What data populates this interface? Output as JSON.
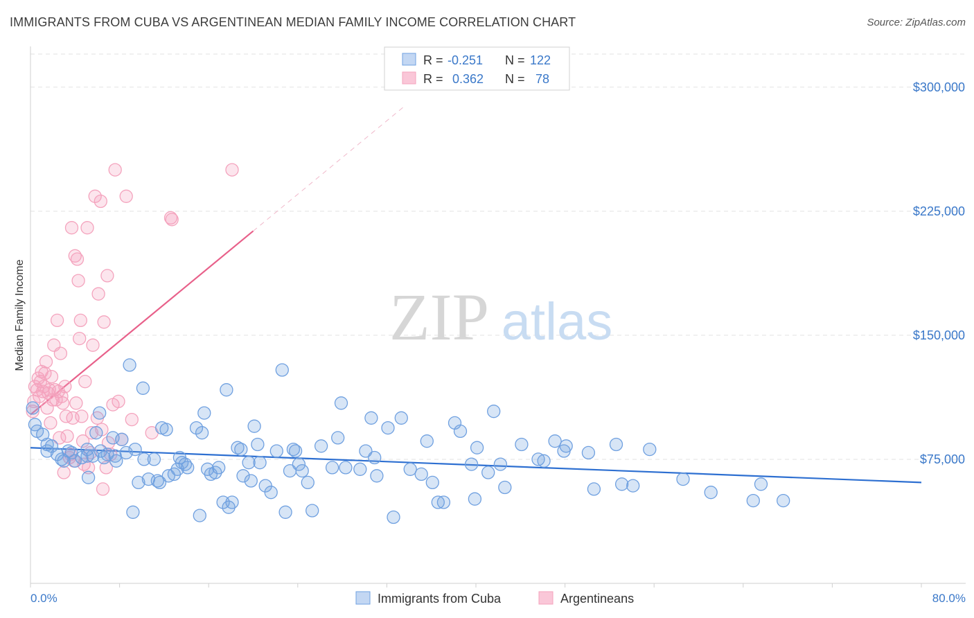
{
  "title": "IMMIGRANTS FROM CUBA VS ARGENTINEAN MEDIAN FAMILY INCOME CORRELATION CHART",
  "source": "Source: ZipAtlas.com",
  "watermark": {
    "zip": "ZIP",
    "atlas": "atlas"
  },
  "chart_data": {
    "type": "scatter",
    "ylabel": "Median Family Income",
    "xlabel": "",
    "xlim": [
      0,
      80
    ],
    "ylim": [
      0,
      320000
    ],
    "x_tick_labels": [
      "0.0%",
      "80.0%"
    ],
    "y_ticks": [
      75000,
      150000,
      225000,
      300000
    ],
    "y_tick_labels": [
      "$75,000",
      "$150,000",
      "$225,000",
      "$300,000"
    ],
    "legend": {
      "position": "top-center",
      "rows": [
        {
          "r_label": "R =",
          "r_value": "-0.251",
          "n_label": "N =",
          "n_value": "122"
        },
        {
          "r_label": "R =",
          "r_value": "0.362",
          "n_label": "N =",
          "n_value": "78"
        }
      ]
    },
    "series": [
      {
        "name": "Immigrants from Cuba",
        "color": "#6fa0e0",
        "line_color": "#2d6fd1",
        "trend": {
          "x0": 0,
          "y0": 82000,
          "x1": 80,
          "y1": 61000
        },
        "points": [
          [
            0.2,
            106000
          ],
          [
            0.4,
            96000
          ],
          [
            0.6,
            92000
          ],
          [
            1.1,
            90000
          ],
          [
            1.5,
            84000
          ],
          [
            1.5,
            80000
          ],
          [
            1.9,
            83000
          ],
          [
            2.4,
            78000
          ],
          [
            2.8,
            75000
          ],
          [
            3.0,
            74000
          ],
          [
            3.4,
            80000
          ],
          [
            3.7,
            79000
          ],
          [
            4.0,
            74000
          ],
          [
            4.6,
            76000
          ],
          [
            5.1,
            77000
          ],
          [
            5.1,
            81000
          ],
          [
            5.2,
            64000
          ],
          [
            5.6,
            77000
          ],
          [
            5.9,
            91000
          ],
          [
            6.2,
            103000
          ],
          [
            6.3,
            80000
          ],
          [
            6.6,
            76000
          ],
          [
            6.9,
            78000
          ],
          [
            7.4,
            88000
          ],
          [
            7.6,
            77000
          ],
          [
            7.7,
            74000
          ],
          [
            8.2,
            87000
          ],
          [
            8.6,
            79000
          ],
          [
            8.9,
            132000
          ],
          [
            9.2,
            43000
          ],
          [
            9.4,
            81000
          ],
          [
            9.7,
            61000
          ],
          [
            10.1,
            118000
          ],
          [
            10.2,
            75000
          ],
          [
            10.6,
            63000
          ],
          [
            11.1,
            75000
          ],
          [
            11.4,
            62000
          ],
          [
            11.6,
            61000
          ],
          [
            11.8,
            94000
          ],
          [
            12.2,
            93000
          ],
          [
            12.4,
            65000
          ],
          [
            12.9,
            66000
          ],
          [
            13.2,
            69000
          ],
          [
            13.4,
            76000
          ],
          [
            13.6,
            73000
          ],
          [
            13.9,
            72000
          ],
          [
            14.1,
            70000
          ],
          [
            14.9,
            94000
          ],
          [
            15.2,
            41000
          ],
          [
            15.4,
            91000
          ],
          [
            15.6,
            103000
          ],
          [
            15.9,
            69000
          ],
          [
            16.2,
            66000
          ],
          [
            16.6,
            67000
          ],
          [
            16.9,
            70000
          ],
          [
            17.3,
            49000
          ],
          [
            17.6,
            117000
          ],
          [
            17.8,
            46000
          ],
          [
            18.1,
            49000
          ],
          [
            18.6,
            82000
          ],
          [
            18.9,
            81000
          ],
          [
            19.1,
            65000
          ],
          [
            19.6,
            73000
          ],
          [
            19.8,
            62000
          ],
          [
            20.1,
            95000
          ],
          [
            20.4,
            84000
          ],
          [
            20.6,
            73000
          ],
          [
            21.1,
            59000
          ],
          [
            21.6,
            55000
          ],
          [
            22.1,
            80000
          ],
          [
            22.6,
            129000
          ],
          [
            22.9,
            43000
          ],
          [
            23.3,
            68000
          ],
          [
            23.6,
            81000
          ],
          [
            23.8,
            80000
          ],
          [
            24.1,
            72000
          ],
          [
            24.4,
            68000
          ],
          [
            24.9,
            61000
          ],
          [
            25.3,
            44000
          ],
          [
            26.1,
            83000
          ],
          [
            27.1,
            70000
          ],
          [
            27.6,
            88000
          ],
          [
            27.9,
            109000
          ],
          [
            28.3,
            70000
          ],
          [
            29.6,
            69000
          ],
          [
            30.1,
            80000
          ],
          [
            30.6,
            100000
          ],
          [
            30.9,
            76000
          ],
          [
            31.1,
            65000
          ],
          [
            32.1,
            94000
          ],
          [
            32.6,
            40000
          ],
          [
            33.3,
            100000
          ],
          [
            34.1,
            69000
          ],
          [
            35.1,
            66000
          ],
          [
            35.6,
            86000
          ],
          [
            36.1,
            61000
          ],
          [
            36.6,
            49000
          ],
          [
            37.1,
            49000
          ],
          [
            38.1,
            97000
          ],
          [
            38.6,
            92000
          ],
          [
            39.6,
            72000
          ],
          [
            39.9,
            51000
          ],
          [
            40.1,
            82000
          ],
          [
            41.1,
            67000
          ],
          [
            41.6,
            104000
          ],
          [
            42.2,
            72000
          ],
          [
            42.6,
            58000
          ],
          [
            44.1,
            84000
          ],
          [
            45.6,
            75000
          ],
          [
            46.1,
            74000
          ],
          [
            47.1,
            86000
          ],
          [
            47.9,
            80000
          ],
          [
            48.1,
            83000
          ],
          [
            50.1,
            79000
          ],
          [
            50.6,
            57000
          ],
          [
            52.6,
            84000
          ],
          [
            53.1,
            60000
          ],
          [
            54.1,
            59000
          ],
          [
            55.6,
            81000
          ],
          [
            58.6,
            63000
          ],
          [
            61.1,
            55000
          ],
          [
            64.9,
            50000
          ],
          [
            65.6,
            60000
          ],
          [
            67.6,
            50000
          ]
        ]
      },
      {
        "name": "Argentineans",
        "color": "#f4a3bd",
        "line_color": "#e8608a",
        "trend": {
          "x0": 0,
          "y0": 102000,
          "x1": 20,
          "y1": 213000
        },
        "trend_ext": {
          "x0": 20,
          "y0": 213000,
          "x1": 33.5,
          "y1": 288000
        },
        "points": [
          [
            0.2,
            104000
          ],
          [
            0.3,
            110000
          ],
          [
            0.4,
            119000
          ],
          [
            0.6,
            117000
          ],
          [
            0.7,
            124000
          ],
          [
            0.8,
            113000
          ],
          [
            0.9,
            122000
          ],
          [
            1.0,
            128000
          ],
          [
            1.1,
            116000
          ],
          [
            1.2,
            119000
          ],
          [
            1.3,
            127000
          ],
          [
            1.4,
            134000
          ],
          [
            1.5,
            106000
          ],
          [
            1.6,
            115000
          ],
          [
            1.7,
            117000
          ],
          [
            1.8,
            97000
          ],
          [
            1.9,
            125000
          ],
          [
            2.0,
            111000
          ],
          [
            2.1,
            144000
          ],
          [
            2.2,
            117000
          ],
          [
            2.3,
            111000
          ],
          [
            2.4,
            159000
          ],
          [
            2.5,
            116000
          ],
          [
            2.6,
            88000
          ],
          [
            2.7,
            139000
          ],
          [
            2.8,
            113000
          ],
          [
            2.9,
            109000
          ],
          [
            3.0,
            67000
          ],
          [
            3.1,
            119000
          ],
          [
            3.2,
            101000
          ],
          [
            3.3,
            89000
          ],
          [
            3.5,
            76000
          ],
          [
            3.6,
            78000
          ],
          [
            3.7,
            215000
          ],
          [
            3.8,
            100000
          ],
          [
            3.9,
            74000
          ],
          [
            4.0,
            198000
          ],
          [
            4.1,
            109000
          ],
          [
            4.2,
            196000
          ],
          [
            4.3,
            183000
          ],
          [
            4.4,
            148000
          ],
          [
            4.5,
            159000
          ],
          [
            4.6,
            101000
          ],
          [
            4.7,
            86000
          ],
          [
            4.8,
            72000
          ],
          [
            4.9,
            122000
          ],
          [
            5.1,
            215000
          ],
          [
            5.2,
            70000
          ],
          [
            5.4,
            79000
          ],
          [
            5.5,
            91000
          ],
          [
            5.6,
            144000
          ],
          [
            5.8,
            234000
          ],
          [
            6.0,
            100000
          ],
          [
            6.1,
            175000
          ],
          [
            6.3,
            231000
          ],
          [
            6.4,
            93000
          ],
          [
            6.5,
            57000
          ],
          [
            6.6,
            158000
          ],
          [
            6.8,
            70000
          ],
          [
            6.9,
            186000
          ],
          [
            7.0,
            85000
          ],
          [
            7.2,
            78000
          ],
          [
            7.4,
            108000
          ],
          [
            7.6,
            250000
          ],
          [
            7.9,
            110000
          ],
          [
            8.2,
            87000
          ],
          [
            8.6,
            234000
          ],
          [
            9.1,
            99000
          ],
          [
            10.9,
            91000
          ],
          [
            12.6,
            221000
          ],
          [
            12.7,
            220000
          ],
          [
            18.1,
            250000
          ]
        ]
      }
    ]
  }
}
